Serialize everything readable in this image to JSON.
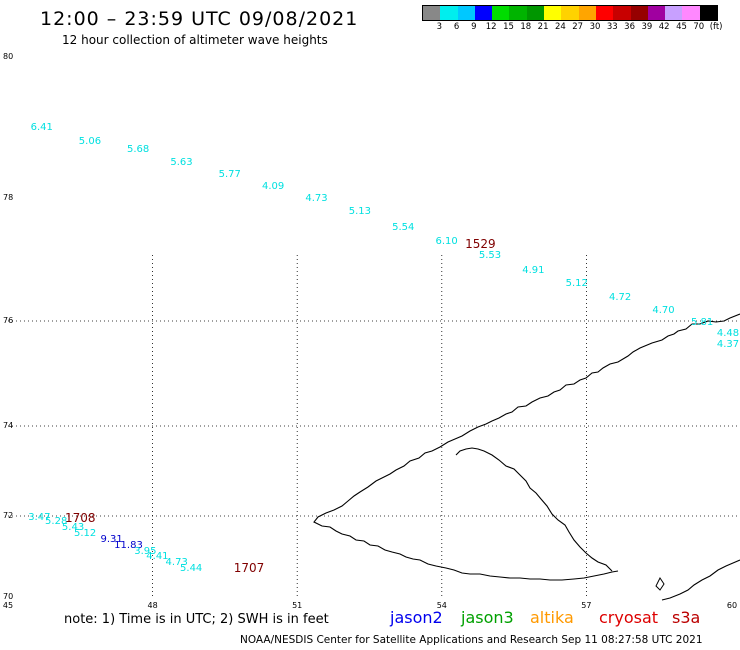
{
  "header": {
    "title": "12:00 – 23:59 UTC 09/08/2021",
    "subtitle": "12 hour collection of altimeter wave heights"
  },
  "colorbar": {
    "swatches": [
      "#888888",
      "#00eeee",
      "#00c8ff",
      "#0000ff",
      "#00dd00",
      "#00b400",
      "#009600",
      "#ffff00",
      "#ffd200",
      "#ffa500",
      "#ff0000",
      "#c80000",
      "#960000",
      "#a000a0",
      "#c8a0ff",
      "#ff88ff",
      "#000000"
    ],
    "labels": [
      "3",
      "6",
      "9",
      "12",
      "15",
      "18",
      "21",
      "24",
      "27",
      "30",
      "33",
      "36",
      "39",
      "42",
      "45",
      "70",
      "(ft)"
    ]
  },
  "axes": {
    "lat_labels": [
      "80",
      "78",
      "76",
      "74",
      "72",
      "70"
    ],
    "lon_labels": [
      "45",
      "48",
      "51",
      "54",
      "57",
      "60"
    ]
  },
  "observations": [
    {
      "text": "6.41",
      "color": "#00e0e0",
      "lon": 45.7,
      "lat": 79.0
    },
    {
      "text": "5.06",
      "color": "#00e0e0",
      "lon": 46.7,
      "lat": 78.8
    },
    {
      "text": "5.68",
      "color": "#00e0e0",
      "lon": 47.7,
      "lat": 78.68
    },
    {
      "text": "5.63",
      "color": "#00e0e0",
      "lon": 48.6,
      "lat": 78.5
    },
    {
      "text": "5.77",
      "color": "#00e0e0",
      "lon": 49.6,
      "lat": 78.33
    },
    {
      "text": "4.09",
      "color": "#00e0e0",
      "lon": 50.5,
      "lat": 78.15
    },
    {
      "text": "4.73",
      "color": "#00e0e0",
      "lon": 51.4,
      "lat": 77.98
    },
    {
      "text": "5.13",
      "color": "#00e0e0",
      "lon": 52.3,
      "lat": 77.77
    },
    {
      "text": "5.54",
      "color": "#00e0e0",
      "lon": 53.2,
      "lat": 77.52
    },
    {
      "text": "6.10",
      "color": "#00e0e0",
      "lon": 54.1,
      "lat": 77.28
    },
    {
      "text": "5.53",
      "color": "#00e0e0",
      "lon": 55.0,
      "lat": 77.05
    },
    {
      "text": "4.91",
      "color": "#00e0e0",
      "lon": 55.9,
      "lat": 76.82
    },
    {
      "text": "5.12",
      "color": "#00e0e0",
      "lon": 56.8,
      "lat": 76.6
    },
    {
      "text": "4.72",
      "color": "#00e0e0",
      "lon": 57.7,
      "lat": 76.38
    },
    {
      "text": "4.70",
      "color": "#00e0e0",
      "lon": 58.6,
      "lat": 76.17
    },
    {
      "text": "5.81",
      "color": "#00e0e0",
      "lon": 59.4,
      "lat": 75.97
    },
    {
      "text": "4.48",
      "color": "#00e0e0",
      "lon": 60.2,
      "lat": 75.75
    },
    {
      "text": "4.37",
      "color": "#00e0e0",
      "lon": 61.0,
      "lat": 75.55
    },
    {
      "text": "3.47",
      "color": "#00e0e0",
      "lon": 45.65,
      "lat": 71.95
    },
    {
      "text": "5.28",
      "color": "#00e0e0",
      "lon": 46.0,
      "lat": 71.84
    },
    {
      "text": "5.43",
      "color": "#00e0e0",
      "lon": 46.35,
      "lat": 71.7
    },
    {
      "text": "5.12",
      "color": "#00e0e0",
      "lon": 46.6,
      "lat": 71.55
    },
    {
      "text": "9.31",
      "color": "#0000cc",
      "lon": 47.15,
      "lat": 71.4
    },
    {
      "text": "11.83",
      "color": "#0000cc",
      "lon": 47.5,
      "lat": 71.27
    },
    {
      "text": "3.95",
      "color": "#00e0e0",
      "lon": 47.85,
      "lat": 71.1
    },
    {
      "text": "4.41",
      "color": "#00e0e0",
      "lon": 48.1,
      "lat": 70.98
    },
    {
      "text": "4.73",
      "color": "#00e0e0",
      "lon": 48.5,
      "lat": 70.85
    },
    {
      "text": "5.44",
      "color": "#00e0e0",
      "lon": 48.8,
      "lat": 70.7
    }
  ],
  "time_labels": [
    {
      "text": "1529",
      "color": "#800000",
      "lon": 54.8,
      "lat": 77.25
    },
    {
      "text": "1708",
      "color": "#800000",
      "lon": 46.5,
      "lat": 71.95
    },
    {
      "text": "1707",
      "color": "#800000",
      "lon": 50.0,
      "lat": 70.72
    }
  ],
  "legend": {
    "note": "note:  1) Time is in UTC;  2) SWH is in feet",
    "satellites": [
      {
        "name": "jason2",
        "color": "#0000ee"
      },
      {
        "name": "jason3",
        "color": "#00a000"
      },
      {
        "name": "altika",
        "color": "#ff9900"
      },
      {
        "name": "cryosat",
        "color": "#dd0000"
      },
      {
        "name": "s3a",
        "color": "#bb0000"
      }
    ]
  },
  "footer": "NOAA/NESDIS Center for Satellite Applications and Research    Sep 11 08:27:58 UTC 2021"
}
